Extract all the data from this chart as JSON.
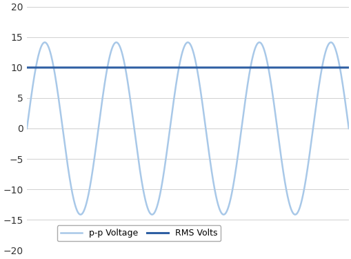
{
  "sine_amplitude": 14.14,
  "sine_cycles": 4.5,
  "rms_value": 10.0,
  "ylim": [
    -20,
    20
  ],
  "yticks": [
    -20,
    -15,
    -10,
    -5,
    0,
    5,
    10,
    15,
    20
  ],
  "sine_color": "#a8c8e8",
  "rms_color": "#2e5fa3",
  "sine_linewidth": 1.8,
  "rms_linewidth": 2.2,
  "sine_label": "p-p Voltage",
  "rms_label": "RMS Volts",
  "legend_loc": "lower left",
  "legend_fontsize": 9,
  "background_color": "#ffffff",
  "grid_color": "#d0d0d0",
  "grid_linewidth": 0.7,
  "figsize": [
    5.1,
    3.75
  ],
  "dpi": 100
}
